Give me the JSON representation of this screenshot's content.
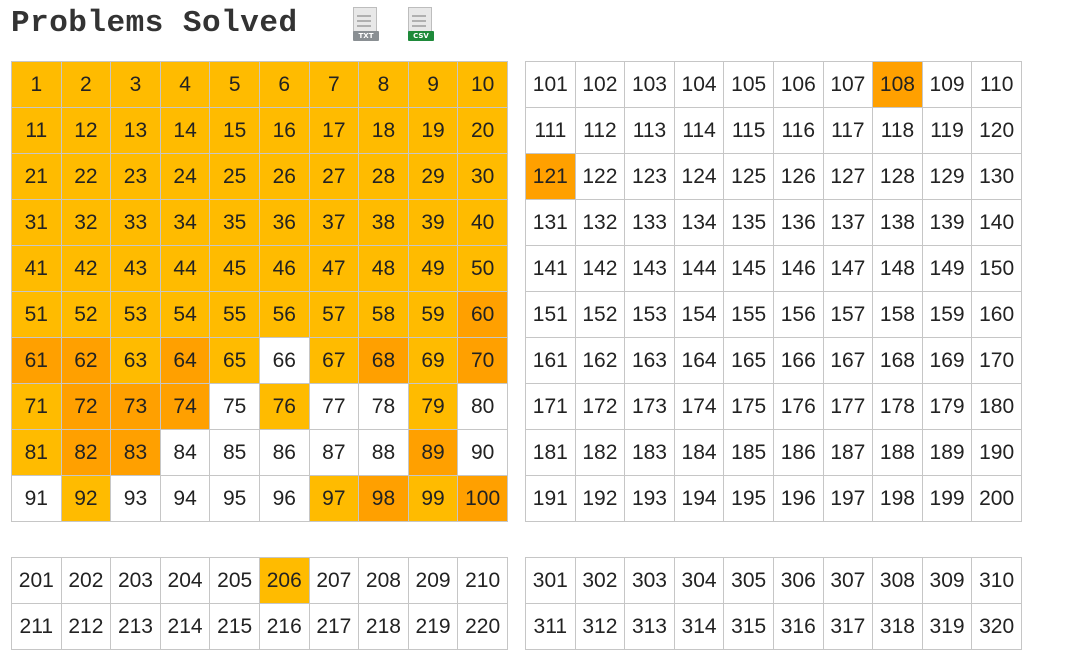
{
  "header": {
    "title": "Problems Solved",
    "txt_label": "TXT",
    "csv_label": "CSV"
  },
  "colors": {
    "solved": "#ffbb00",
    "solved_highlight": "#ffa000",
    "unsolved": "#ffffff",
    "border": "#c6c6c6"
  },
  "blocks": [
    {
      "start": 1,
      "rows": 10
    },
    {
      "start": 101,
      "rows": 10
    },
    {
      "start": 201,
      "rows": 2
    },
    {
      "start": 301,
      "rows": 2
    }
  ],
  "solved": [
    1,
    2,
    3,
    4,
    5,
    6,
    7,
    8,
    9,
    10,
    11,
    12,
    13,
    14,
    15,
    16,
    17,
    18,
    19,
    20,
    21,
    22,
    23,
    24,
    25,
    26,
    27,
    28,
    29,
    30,
    31,
    32,
    33,
    34,
    35,
    36,
    37,
    38,
    39,
    40,
    41,
    42,
    43,
    44,
    45,
    46,
    47,
    48,
    49,
    50,
    51,
    52,
    53,
    54,
    55,
    56,
    57,
    58,
    59,
    60,
    61,
    62,
    63,
    64,
    65,
    67,
    68,
    69,
    70,
    71,
    72,
    73,
    74,
    76,
    79,
    81,
    82,
    83,
    89,
    92,
    97,
    98,
    99,
    100,
    108,
    121,
    206
  ],
  "highlighted": [
    60,
    61,
    62,
    64,
    68,
    70,
    72,
    73,
    74,
    82,
    83,
    89,
    98,
    100,
    108,
    121
  ]
}
